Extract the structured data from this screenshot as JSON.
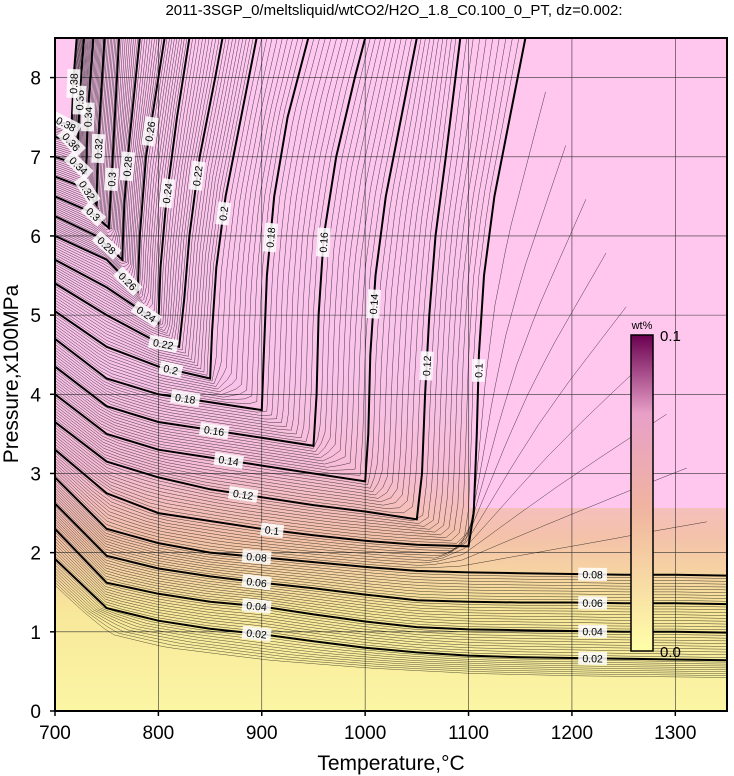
{
  "chart_data": {
    "type": "contour",
    "title": "2011-3SGP_0/meltsliquid/wtCO2/H2O_1.8_C0.100_0_PT, dz=0.002:",
    "xlabel": "Temperature,°C",
    "ylabel": "Pressure,x100MPa",
    "xlim": [
      700,
      1350
    ],
    "ylim": [
      0,
      8.5
    ],
    "x_ticks": [
      700,
      800,
      900,
      1000,
      1100,
      1200,
      1300
    ],
    "x_tick_labels": [
      "700",
      "800",
      "900",
      "1000",
      "1100",
      "1200",
      "1300"
    ],
    "y_ticks": [
      0,
      1,
      2,
      3,
      4,
      5,
      6,
      7,
      8
    ],
    "y_tick_labels": [
      "0",
      "1",
      "2",
      "3",
      "4",
      "5",
      "6",
      "7",
      "8"
    ],
    "grid": true,
    "contour_interval": 0.002,
    "colorbar": {
      "title": "wt%",
      "min_label": "0.0",
      "max_label": "0.1",
      "range": [
        0,
        0.1
      ],
      "colors": [
        "#ffffa8",
        "#f0b0a0",
        "#ffccee",
        "#7a005a"
      ]
    },
    "colors": {
      "low": "#fbf4a2",
      "mid": "#f3b3aa",
      "high": "#ffc6ee",
      "line": "#000000"
    },
    "contours": [
      {
        "level": 0.02,
        "label": "0.02",
        "points": [
          [
            700,
            1.92
          ],
          [
            750,
            1.3
          ],
          [
            800,
            1.14
          ],
          [
            850,
            1.04
          ],
          [
            900,
            0.97
          ],
          [
            950,
            0.88
          ],
          [
            1000,
            0.8
          ],
          [
            1050,
            0.74
          ],
          [
            1100,
            0.7
          ],
          [
            1150,
            0.68
          ],
          [
            1200,
            0.67
          ],
          [
            1250,
            0.66
          ],
          [
            1300,
            0.65
          ],
          [
            1350,
            0.64
          ]
        ]
      },
      {
        "level": 0.04,
        "label": "0.04",
        "points": [
          [
            700,
            2.3
          ],
          [
            750,
            1.62
          ],
          [
            800,
            1.48
          ],
          [
            850,
            1.38
          ],
          [
            900,
            1.32
          ],
          [
            950,
            1.22
          ],
          [
            1000,
            1.13
          ],
          [
            1050,
            1.06
          ],
          [
            1100,
            1.03
          ],
          [
            1150,
            1.02
          ],
          [
            1200,
            1.01
          ],
          [
            1250,
            1.0
          ],
          [
            1300,
            1.0
          ],
          [
            1350,
            0.99
          ]
        ]
      },
      {
        "level": 0.06,
        "label": "0.06",
        "points": [
          [
            700,
            2.62
          ],
          [
            750,
            1.96
          ],
          [
            800,
            1.8
          ],
          [
            850,
            1.7
          ],
          [
            900,
            1.62
          ],
          [
            950,
            1.55
          ],
          [
            1000,
            1.47
          ],
          [
            1050,
            1.4
          ],
          [
            1100,
            1.38
          ],
          [
            1150,
            1.37
          ],
          [
            1200,
            1.37
          ],
          [
            1250,
            1.36
          ],
          [
            1300,
            1.36
          ],
          [
            1350,
            1.35
          ]
        ]
      },
      {
        "level": 0.08,
        "label": "0.08",
        "points": [
          [
            700,
            2.95
          ],
          [
            750,
            2.3
          ],
          [
            800,
            2.12
          ],
          [
            850,
            2.0
          ],
          [
            900,
            1.94
          ],
          [
            950,
            1.88
          ],
          [
            1000,
            1.82
          ],
          [
            1050,
            1.77
          ],
          [
            1100,
            1.75
          ],
          [
            1150,
            1.74
          ],
          [
            1200,
            1.73
          ],
          [
            1250,
            1.72
          ],
          [
            1300,
            1.72
          ],
          [
            1350,
            1.71
          ]
        ]
      },
      {
        "level": 0.1,
        "label": "0.1",
        "points": [
          [
            700,
            3.3
          ],
          [
            750,
            2.75
          ],
          [
            800,
            2.5
          ],
          [
            850,
            2.4
          ],
          [
            900,
            2.3
          ],
          [
            950,
            2.22
          ],
          [
            1000,
            2.15
          ],
          [
            1050,
            2.1
          ],
          [
            1100,
            2.08
          ],
          [
            1105,
            2.5
          ],
          [
            1108,
            3.5
          ],
          [
            1110,
            4.5
          ],
          [
            1115,
            5.5
          ],
          [
            1125,
            6.5
          ],
          [
            1140,
            7.5
          ],
          [
            1155,
            8.5
          ]
        ]
      },
      {
        "level": 0.12,
        "label": "0.12",
        "points": [
          [
            700,
            3.65
          ],
          [
            750,
            3.15
          ],
          [
            800,
            2.95
          ],
          [
            850,
            2.8
          ],
          [
            900,
            2.7
          ],
          [
            950,
            2.6
          ],
          [
            1000,
            2.52
          ],
          [
            1050,
            2.42
          ],
          [
            1055,
            3.0
          ],
          [
            1058,
            4.0
          ],
          [
            1062,
            5.0
          ],
          [
            1068,
            6.0
          ],
          [
            1078,
            7.0
          ],
          [
            1092,
            8.5
          ]
        ]
      },
      {
        "level": 0.14,
        "label": "0.14",
        "points": [
          [
            700,
            4.0
          ],
          [
            750,
            3.5
          ],
          [
            800,
            3.3
          ],
          [
            850,
            3.2
          ],
          [
            900,
            3.1
          ],
          [
            950,
            3.0
          ],
          [
            1000,
            2.9
          ],
          [
            1003,
            3.5
          ],
          [
            1005,
            4.5
          ],
          [
            1010,
            5.5
          ],
          [
            1020,
            6.5
          ],
          [
            1035,
            7.5
          ],
          [
            1050,
            8.5
          ]
        ]
      },
      {
        "level": 0.16,
        "label": "0.16",
        "points": [
          [
            700,
            4.35
          ],
          [
            750,
            3.85
          ],
          [
            800,
            3.65
          ],
          [
            850,
            3.55
          ],
          [
            900,
            3.45
          ],
          [
            950,
            3.35
          ],
          [
            953,
            4.0
          ],
          [
            955,
            5.0
          ],
          [
            960,
            6.0
          ],
          [
            972,
            7.0
          ],
          [
            990,
            8.0
          ],
          [
            1000,
            8.5
          ]
        ]
      },
      {
        "level": 0.18,
        "label": "0.18",
        "points": [
          [
            700,
            4.7
          ],
          [
            750,
            4.2
          ],
          [
            800,
            4.0
          ],
          [
            850,
            3.9
          ],
          [
            900,
            3.8
          ],
          [
            902,
            4.5
          ],
          [
            905,
            5.5
          ],
          [
            912,
            6.5
          ],
          [
            925,
            7.5
          ],
          [
            945,
            8.5
          ]
        ]
      },
      {
        "level": 0.2,
        "label": "0.2",
        "points": [
          [
            700,
            5.05
          ],
          [
            750,
            4.6
          ],
          [
            800,
            4.35
          ],
          [
            850,
            4.2
          ],
          [
            852,
            4.8
          ],
          [
            856,
            5.6
          ],
          [
            865,
            6.5
          ],
          [
            880,
            7.5
          ],
          [
            895,
            8.5
          ]
        ]
      },
      {
        "level": 0.22,
        "label": "0.22",
        "points": [
          [
            700,
            5.4
          ],
          [
            750,
            5.0
          ],
          [
            800,
            4.65
          ],
          [
            820,
            4.6
          ],
          [
            825,
            5.2
          ],
          [
            830,
            6.0
          ],
          [
            840,
            7.0
          ],
          [
            855,
            8.0
          ],
          [
            862,
            8.5
          ]
        ]
      },
      {
        "level": 0.24,
        "label": "0.24",
        "points": [
          [
            700,
            5.7
          ],
          [
            750,
            5.35
          ],
          [
            790,
            5.0
          ],
          [
            800,
            4.9
          ],
          [
            802,
            5.6
          ],
          [
            808,
            6.5
          ],
          [
            818,
            7.5
          ],
          [
            830,
            8.5
          ]
        ]
      },
      {
        "level": 0.26,
        "label": "0.26",
        "points": [
          [
            700,
            6.0
          ],
          [
            750,
            5.7
          ],
          [
            780,
            5.3
          ],
          [
            782,
            6.0
          ],
          [
            788,
            7.0
          ],
          [
            800,
            8.0
          ],
          [
            806,
            8.5
          ]
        ]
      },
      {
        "level": 0.28,
        "label": "0.28",
        "points": [
          [
            700,
            6.25
          ],
          [
            740,
            6.0
          ],
          [
            765,
            5.7
          ],
          [
            767,
            6.4
          ],
          [
            772,
            7.2
          ],
          [
            782,
            8.5
          ]
        ]
      },
      {
        "level": 0.3,
        "label": "0.3",
        "points": [
          [
            700,
            6.5
          ],
          [
            735,
            6.3
          ],
          [
            752,
            6.1
          ],
          [
            755,
            6.8
          ],
          [
            762,
            8.5
          ]
        ]
      },
      {
        "level": 0.32,
        "label": "0.32",
        "points": [
          [
            700,
            6.75
          ],
          [
            730,
            6.6
          ],
          [
            740,
            6.4
          ],
          [
            742,
            7.2
          ],
          [
            748,
            8.5
          ]
        ]
      },
      {
        "level": 0.34,
        "label": "0.34",
        "points": [
          [
            700,
            7.0
          ],
          [
            722,
            6.9
          ],
          [
            730,
            6.8
          ],
          [
            732,
            7.6
          ],
          [
            737,
            8.5
          ]
        ]
      },
      {
        "level": 0.36,
        "label": "0.36",
        "points": [
          [
            700,
            7.25
          ],
          [
            715,
            7.2
          ],
          [
            722,
            7.1
          ],
          [
            724,
            7.8
          ],
          [
            728,
            8.5
          ]
        ]
      },
      {
        "level": 0.38,
        "label": "0.38",
        "points": [
          [
            700,
            7.45
          ],
          [
            710,
            7.42
          ],
          [
            716,
            7.38
          ],
          [
            718,
            8.0
          ],
          [
            721,
            8.5
          ]
        ]
      }
    ]
  }
}
